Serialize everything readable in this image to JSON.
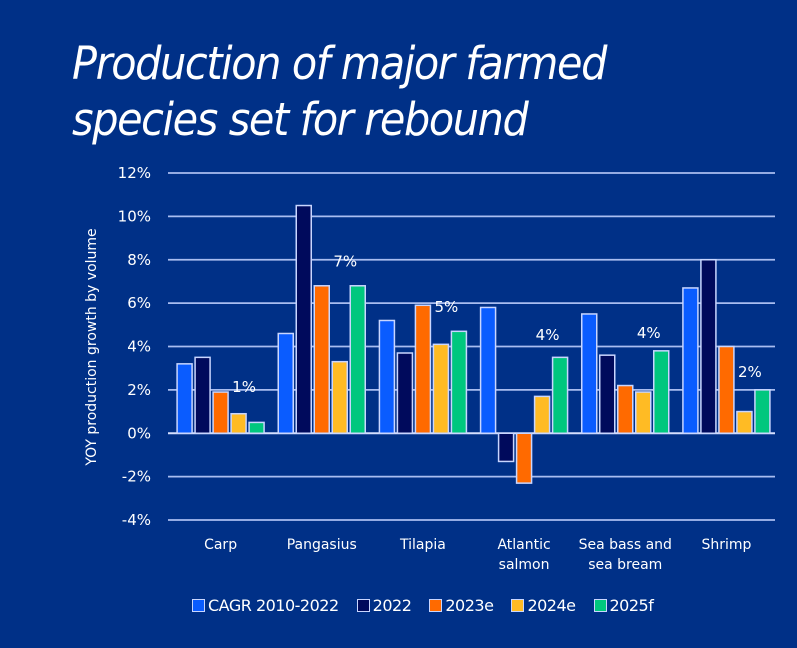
{
  "chart_data": {
    "type": "bar",
    "title": "Production of major farmed species set for rebound",
    "title_lines": [
      "Production of major farmed",
      "species set for rebound"
    ],
    "xlabel": "",
    "ylabel": "YOY production growth by volume",
    "ylim": [
      -4,
      12
    ],
    "yticks": [
      12,
      10,
      8,
      6,
      4,
      2,
      0,
      -2,
      -4
    ],
    "ytick_labels": [
      "12%",
      "10%",
      "8%",
      "6%",
      "4%",
      "2%",
      "0%",
      "-2%",
      "-4%"
    ],
    "grid": true,
    "legend_position": "bottom",
    "categories": [
      [
        "Carp"
      ],
      [
        "Pangasius"
      ],
      [
        "Tilapia"
      ],
      [
        "Atlantic",
        "salmon"
      ],
      [
        "Sea bass and",
        "sea bream"
      ],
      [
        "Shrimp"
      ]
    ],
    "series": [
      {
        "name": "CAGR 2010-2022",
        "color": "#0a5cff",
        "values": [
          3.2,
          4.6,
          5.2,
          5.8,
          5.5,
          6.7
        ]
      },
      {
        "name": "2022",
        "color": "#000a5c",
        "values": [
          3.5,
          10.5,
          3.7,
          -1.3,
          3.6,
          8.0
        ]
      },
      {
        "name": "2023e",
        "color": "#ff6a00",
        "values": [
          1.9,
          6.8,
          5.9,
          -2.3,
          2.2,
          4.0
        ]
      },
      {
        "name": "2024e",
        "color": "#ffbb24",
        "values": [
          0.9,
          3.3,
          4.1,
          1.7,
          1.9,
          1.0
        ]
      },
      {
        "name": "2025f",
        "color": "#00c77e",
        "values": [
          0.5,
          6.8,
          4.7,
          3.5,
          3.8,
          2.0
        ]
      }
    ],
    "annotations": [
      {
        "category_index": 0,
        "text": "1%",
        "y_value": 1.9
      },
      {
        "category_index": 1,
        "text": "7%",
        "y_value": 7.7
      },
      {
        "category_index": 2,
        "text": "5%",
        "y_value": 5.6
      },
      {
        "category_index": 3,
        "text": "4%",
        "y_value": 4.3
      },
      {
        "category_index": 4,
        "text": "4%",
        "y_value": 4.4
      },
      {
        "category_index": 5,
        "text": "2%",
        "y_value": 2.6
      }
    ]
  },
  "colors": {
    "background": "#003087",
    "gridline": "#a9bdf0",
    "bar_outline": "#c9d6ff",
    "text": "#ffffff"
  }
}
